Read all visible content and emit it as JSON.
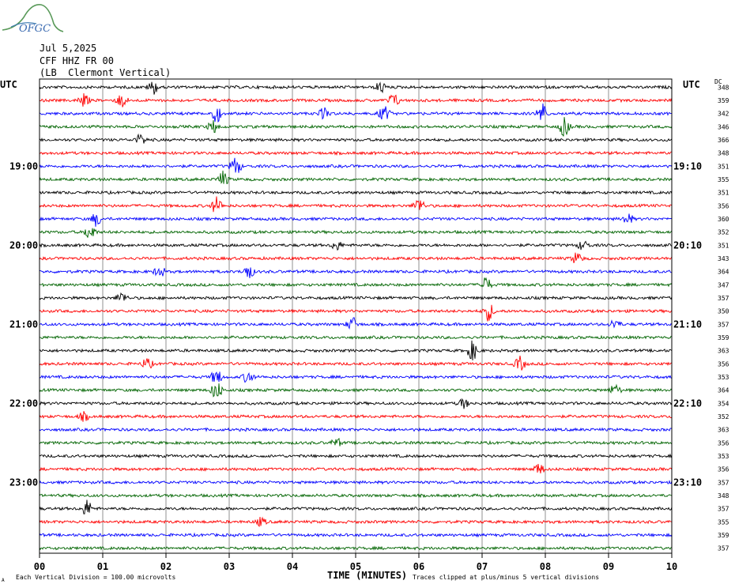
{
  "logo_text": "OFGC",
  "header": {
    "date": "Jul 5,2025",
    "station": "CFF HHZ FR 00",
    "location": "(LB  Clermont Vertical)"
  },
  "left_tz": "UTC",
  "right_tz": "UTC",
  "dc_label": "DC",
  "footer": {
    "xlabel": "TIME (MINUTES)",
    "scale_note": "Each Vertical Division =  100.00 microvolts",
    "clip_note": "Traces clipped at plus/minus 5 vertical divisions",
    "corner_mark": "A"
  },
  "colors": {
    "black": "#000000",
    "red": "#ff0000",
    "blue": "#0000ff",
    "green": "#006400",
    "grid": "#777777"
  },
  "chart_data": {
    "type": "line",
    "title": "",
    "xlabel": "TIME (MINUTES)",
    "xlim": [
      0,
      10
    ],
    "xticks": [
      "00",
      "01",
      "02",
      "03",
      "04",
      "05",
      "06",
      "07",
      "08",
      "09",
      "10"
    ],
    "row_interval_minutes": 10,
    "trace_colors": [
      "black",
      "red",
      "blue",
      "green"
    ],
    "left_hour_labels": [
      {
        "row": 6,
        "label": "19:00"
      },
      {
        "row": 12,
        "label": "20:00"
      },
      {
        "row": 18,
        "label": "21:00"
      },
      {
        "row": 24,
        "label": "22:00"
      },
      {
        "row": 30,
        "label": "23:00"
      }
    ],
    "right_hour_labels": [
      {
        "row": 6,
        "label": "19:10"
      },
      {
        "row": 12,
        "label": "20:10"
      },
      {
        "row": 18,
        "label": "21:10"
      },
      {
        "row": 24,
        "label": "22:10"
      },
      {
        "row": 30,
        "label": "23:10"
      }
    ],
    "dc_offsets": [
      348,
      359,
      342,
      346,
      366,
      348,
      351,
      355,
      351,
      356,
      360,
      352,
      351,
      343,
      364,
      347,
      357,
      350,
      357,
      359,
      363,
      356,
      353,
      364,
      354,
      352,
      363,
      356,
      353,
      356,
      357,
      348,
      357,
      355,
      359,
      357
    ],
    "events": [
      {
        "row": 0,
        "minute": 1.8,
        "amp": 1.0
      },
      {
        "row": 0,
        "minute": 5.4,
        "amp": 0.8
      },
      {
        "row": 1,
        "minute": 0.7,
        "amp": 0.9
      },
      {
        "row": 1,
        "minute": 1.3,
        "amp": 1.0
      },
      {
        "row": 1,
        "minute": 5.6,
        "amp": 1.0
      },
      {
        "row": 2,
        "minute": 2.8,
        "amp": 1.3
      },
      {
        "row": 2,
        "minute": 4.5,
        "amp": 0.8
      },
      {
        "row": 2,
        "minute": 5.45,
        "amp": 1.1
      },
      {
        "row": 2,
        "minute": 7.95,
        "amp": 1.5
      },
      {
        "row": 3,
        "minute": 2.75,
        "amp": 0.9
      },
      {
        "row": 3,
        "minute": 8.3,
        "amp": 1.4
      },
      {
        "row": 4,
        "minute": 1.6,
        "amp": 0.8
      },
      {
        "row": 6,
        "minute": 3.1,
        "amp": 1.4
      },
      {
        "row": 7,
        "minute": 2.9,
        "amp": 1.1
      },
      {
        "row": 9,
        "minute": 2.8,
        "amp": 1.2
      },
      {
        "row": 9,
        "minute": 6.0,
        "amp": 1.1
      },
      {
        "row": 10,
        "minute": 0.9,
        "amp": 1.0
      },
      {
        "row": 10,
        "minute": 9.3,
        "amp": 0.8
      },
      {
        "row": 11,
        "minute": 0.8,
        "amp": 1.2
      },
      {
        "row": 12,
        "minute": 4.7,
        "amp": 0.7
      },
      {
        "row": 12,
        "minute": 8.6,
        "amp": 0.7
      },
      {
        "row": 13,
        "minute": 8.5,
        "amp": 0.9
      },
      {
        "row": 14,
        "minute": 1.9,
        "amp": 0.8
      },
      {
        "row": 14,
        "minute": 3.3,
        "amp": 1.1
      },
      {
        "row": 15,
        "minute": 7.05,
        "amp": 1.2
      },
      {
        "row": 16,
        "minute": 1.3,
        "amp": 0.8
      },
      {
        "row": 17,
        "minute": 7.1,
        "amp": 1.4
      },
      {
        "row": 18,
        "minute": 4.95,
        "amp": 1.0
      },
      {
        "row": 18,
        "minute": 9.1,
        "amp": 0.7
      },
      {
        "row": 20,
        "minute": 6.85,
        "amp": 1.4
      },
      {
        "row": 21,
        "minute": 1.7,
        "amp": 0.8
      },
      {
        "row": 21,
        "minute": 7.6,
        "amp": 1.0
      },
      {
        "row": 22,
        "minute": 2.8,
        "amp": 1.1
      },
      {
        "row": 22,
        "minute": 3.3,
        "amp": 0.9
      },
      {
        "row": 23,
        "minute": 2.8,
        "amp": 1.4
      },
      {
        "row": 23,
        "minute": 9.1,
        "amp": 0.8
      },
      {
        "row": 24,
        "minute": 6.7,
        "amp": 0.7
      },
      {
        "row": 25,
        "minute": 0.7,
        "amp": 0.6
      },
      {
        "row": 27,
        "minute": 4.7,
        "amp": 0.6
      },
      {
        "row": 29,
        "minute": 7.9,
        "amp": 0.8
      },
      {
        "row": 32,
        "minute": 0.75,
        "amp": 1.2
      },
      {
        "row": 33,
        "minute": 3.5,
        "amp": 0.6
      }
    ]
  }
}
